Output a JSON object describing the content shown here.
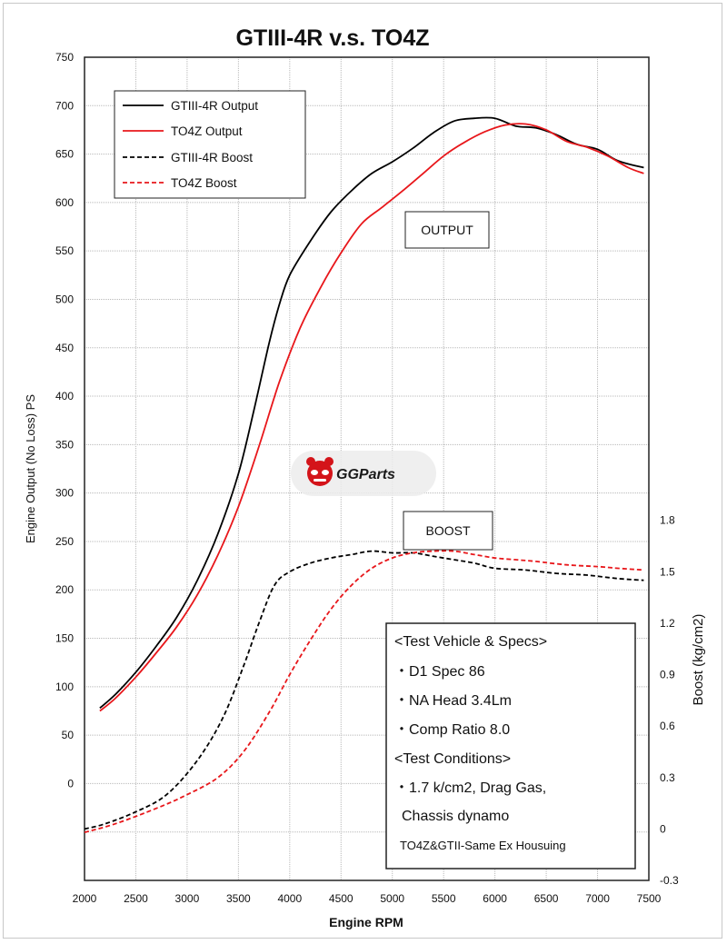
{
  "chart_data": {
    "type": "line",
    "title": "GTIII-4R v.s. TO4Z",
    "xlabel": "Engine RPM",
    "ylabel": "Engine Output (No Loss) PS",
    "y2label": "Boost (kg/cm2)",
    "xlim": [
      2000,
      7500
    ],
    "ylim": [
      -100,
      750
    ],
    "y2lim": [
      -0.3,
      4.5
    ],
    "x_ticks": [
      2000,
      2500,
      3000,
      3500,
      4000,
      4500,
      5000,
      5500,
      6000,
      6500,
      7000,
      7500
    ],
    "y_ticks": [
      0,
      50,
      100,
      150,
      200,
      250,
      300,
      350,
      400,
      450,
      500,
      550,
      600,
      650,
      700,
      750
    ],
    "y2_ticks": [
      -0.3,
      0,
      0.3,
      0.6,
      0.9,
      1.2,
      1.5,
      1.8
    ],
    "y2_tick_labels": [
      "-0.3",
      "0",
      "0.3",
      "0.6",
      "0.9",
      "1.2",
      "1.5",
      "1.8"
    ],
    "grid": true,
    "legend_position": "top-left",
    "series": [
      {
        "name": "GTIII-4R Output",
        "axis": "left",
        "color": "#000000",
        "style": "solid",
        "points": [
          [
            2150,
            78
          ],
          [
            2300,
            92
          ],
          [
            2500,
            115
          ],
          [
            2700,
            142
          ],
          [
            2900,
            172
          ],
          [
            3100,
            210
          ],
          [
            3300,
            258
          ],
          [
            3500,
            320
          ],
          [
            3650,
            385
          ],
          [
            3800,
            455
          ],
          [
            3900,
            495
          ],
          [
            4000,
            525
          ],
          [
            4200,
            560
          ],
          [
            4400,
            590
          ],
          [
            4600,
            612
          ],
          [
            4800,
            630
          ],
          [
            5000,
            642
          ],
          [
            5200,
            656
          ],
          [
            5400,
            672
          ],
          [
            5600,
            684
          ],
          [
            5800,
            687
          ],
          [
            6000,
            687
          ],
          [
            6200,
            679
          ],
          [
            6400,
            677
          ],
          [
            6600,
            670
          ],
          [
            6800,
            660
          ],
          [
            7000,
            655
          ],
          [
            7200,
            643
          ],
          [
            7450,
            636
          ]
        ]
      },
      {
        "name": "TO4Z Output",
        "axis": "left",
        "color": "#e8171b",
        "style": "solid",
        "points": [
          [
            2150,
            75
          ],
          [
            2300,
            88
          ],
          [
            2500,
            110
          ],
          [
            2700,
            135
          ],
          [
            2900,
            162
          ],
          [
            3100,
            195
          ],
          [
            3300,
            236
          ],
          [
            3500,
            286
          ],
          [
            3700,
            348
          ],
          [
            3900,
            415
          ],
          [
            4100,
            470
          ],
          [
            4300,
            512
          ],
          [
            4500,
            548
          ],
          [
            4700,
            578
          ],
          [
            4900,
            595
          ],
          [
            5100,
            612
          ],
          [
            5300,
            630
          ],
          [
            5500,
            648
          ],
          [
            5700,
            662
          ],
          [
            5900,
            673
          ],
          [
            6100,
            680
          ],
          [
            6300,
            681
          ],
          [
            6500,
            675
          ],
          [
            6700,
            663
          ],
          [
            6900,
            657
          ],
          [
            7100,
            648
          ],
          [
            7300,
            636
          ],
          [
            7450,
            630
          ]
        ]
      },
      {
        "name": "GTIII-4R Boost",
        "axis": "right",
        "color": "#000000",
        "style": "dashed",
        "points": [
          [
            2000,
            0.0
          ],
          [
            2200,
            0.03
          ],
          [
            2500,
            0.1
          ],
          [
            2800,
            0.2
          ],
          [
            3100,
            0.4
          ],
          [
            3350,
            0.65
          ],
          [
            3550,
            0.95
          ],
          [
            3700,
            1.2
          ],
          [
            3850,
            1.42
          ],
          [
            4000,
            1.5
          ],
          [
            4200,
            1.55
          ],
          [
            4400,
            1.58
          ],
          [
            4600,
            1.6
          ],
          [
            4800,
            1.62
          ],
          [
            5000,
            1.61
          ],
          [
            5200,
            1.61
          ],
          [
            5400,
            1.59
          ],
          [
            5600,
            1.57
          ],
          [
            5800,
            1.55
          ],
          [
            6000,
            1.52
          ],
          [
            6300,
            1.51
          ],
          [
            6600,
            1.49
          ],
          [
            6900,
            1.48
          ],
          [
            7200,
            1.46
          ],
          [
            7450,
            1.45
          ]
        ]
      },
      {
        "name": "TO4Z Boost",
        "axis": "right",
        "color": "#e8171b",
        "style": "dashed",
        "points": [
          [
            2000,
            -0.02
          ],
          [
            2300,
            0.03
          ],
          [
            2700,
            0.12
          ],
          [
            3000,
            0.2
          ],
          [
            3300,
            0.3
          ],
          [
            3550,
            0.45
          ],
          [
            3800,
            0.68
          ],
          [
            4000,
            0.9
          ],
          [
            4200,
            1.1
          ],
          [
            4400,
            1.28
          ],
          [
            4600,
            1.42
          ],
          [
            4800,
            1.52
          ],
          [
            5000,
            1.58
          ],
          [
            5200,
            1.61
          ],
          [
            5400,
            1.62
          ],
          [
            5600,
            1.62
          ],
          [
            5800,
            1.6
          ],
          [
            6000,
            1.58
          ],
          [
            6200,
            1.57
          ],
          [
            6400,
            1.56
          ],
          [
            6700,
            1.54
          ],
          [
            7000,
            1.53
          ],
          [
            7200,
            1.52
          ],
          [
            7450,
            1.51
          ]
        ]
      }
    ],
    "annotations": {
      "output_label": "OUTPUT",
      "boost_label": "BOOST"
    },
    "specs": {
      "lines": [
        "<Test Vehicle & Specs>",
        "・D1 Spec 86",
        "・NA Head 3.4Lm",
        "・Comp Ratio 8.0",
        "<Test Conditions>",
        "・1.7 k/cm2, Drag Gas,",
        "Chassis dynamo"
      ],
      "footnote": "TO4Z&GTII-Same Ex Housuing"
    },
    "watermark": "GGParts"
  },
  "colors": {
    "black_series": "#000000",
    "red_series": "#e8171b",
    "grid": "#b8b8b8"
  }
}
